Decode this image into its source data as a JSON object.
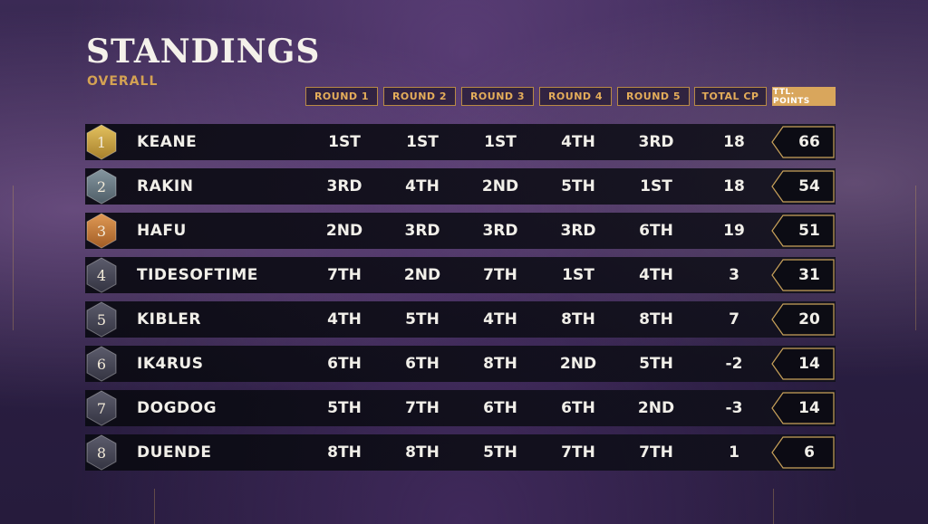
{
  "header": {
    "title": "STANDINGS",
    "subtitle": "OVERALL"
  },
  "columns": [
    "ROUND 1",
    "ROUND 2",
    "ROUND 3",
    "ROUND 4",
    "ROUND 5",
    "TOTAL CP",
    "TTL. POINTS"
  ],
  "badge_colors": {
    "gold": "#c9a245",
    "silver": "#6b7c86",
    "bronze": "#c47a3c",
    "default": "#4a4a5a"
  },
  "standings": [
    {
      "rank": "1",
      "name": "KEANE",
      "r1": "1ST",
      "r2": "1ST",
      "r3": "1ST",
      "r4": "4TH",
      "r5": "3RD",
      "cp": "18",
      "points": "66",
      "badge": "gold-hexagon-icon"
    },
    {
      "rank": "2",
      "name": "RAKIN",
      "r1": "3RD",
      "r2": "4TH",
      "r3": "2ND",
      "r4": "5TH",
      "r5": "1ST",
      "cp": "18",
      "points": "54",
      "badge": "silver-hexagon-icon"
    },
    {
      "rank": "3",
      "name": "HAFU",
      "r1": "2ND",
      "r2": "3RD",
      "r3": "3RD",
      "r4": "3RD",
      "r5": "6TH",
      "cp": "19",
      "points": "51",
      "badge": "bronze-hexagon-icon"
    },
    {
      "rank": "4",
      "name": "TIDESOFTIME",
      "r1": "7TH",
      "r2": "2ND",
      "r3": "7TH",
      "r4": "1ST",
      "r5": "4TH",
      "cp": "3",
      "points": "31",
      "badge": "hexagon-icon"
    },
    {
      "rank": "5",
      "name": "KIBLER",
      "r1": "4TH",
      "r2": "5TH",
      "r3": "4TH",
      "r4": "8TH",
      "r5": "8TH",
      "cp": "7",
      "points": "20",
      "badge": "hexagon-icon"
    },
    {
      "rank": "6",
      "name": "IK4RUS",
      "r1": "6TH",
      "r2": "6TH",
      "r3": "8TH",
      "r4": "2ND",
      "r5": "5TH",
      "cp": "-2",
      "points": "14",
      "badge": "hexagon-icon"
    },
    {
      "rank": "7",
      "name": "DOGDOG",
      "r1": "5TH",
      "r2": "7TH",
      "r3": "6TH",
      "r4": "6TH",
      "r5": "2ND",
      "cp": "-3",
      "points": "14",
      "badge": "hexagon-icon"
    },
    {
      "rank": "8",
      "name": "DUENDE",
      "r1": "8TH",
      "r2": "8TH",
      "r3": "5TH",
      "r4": "7TH",
      "r5": "7TH",
      "cp": "1",
      "points": "6",
      "badge": "hexagon-icon"
    }
  ]
}
